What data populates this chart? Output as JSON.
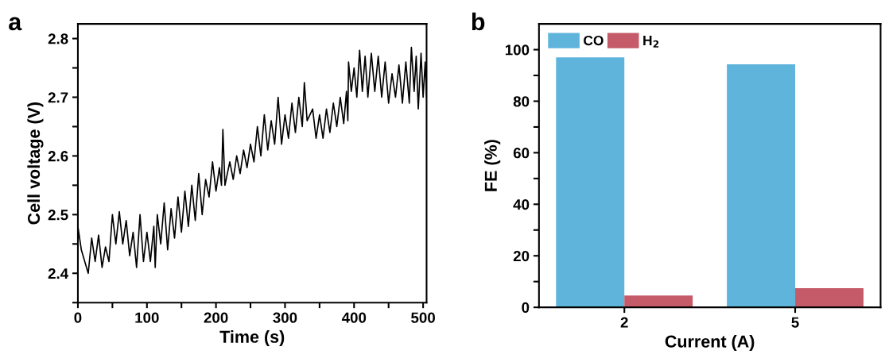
{
  "chart_data": [
    {
      "type": "line",
      "title": "a",
      "xlabel": "Time (s)",
      "ylabel": "Cell voltage (V)",
      "xlim": [
        0,
        505
      ],
      "ylim": [
        2.35,
        2.825
      ],
      "xticks": [
        0,
        {
          "value": 50,
          "label": null
        },
        100,
        {
          "value": 150,
          "label": null
        },
        200,
        {
          "value": 250,
          "label": null
        },
        300,
        {
          "value": 350,
          "label": null
        },
        400,
        {
          "value": 450,
          "label": null
        },
        500
      ],
      "yticks": [
        {
          "value": 2.35,
          "label": null
        },
        2.4,
        {
          "value": 2.45,
          "label": null
        },
        2.5,
        {
          "value": 2.55,
          "label": null
        },
        2.6,
        {
          "value": 2.65,
          "label": null
        },
        2.7,
        {
          "value": 2.75,
          "label": null
        },
        2.8
      ],
      "grid": false,
      "legend": false,
      "series": [
        {
          "color": "#000000",
          "x": [
            0,
            5,
            10,
            15,
            20,
            25,
            30,
            35,
            40,
            45,
            50,
            55,
            60,
            65,
            70,
            75,
            80,
            85,
            90,
            95,
            100,
            105,
            110,
            112,
            115,
            120,
            125,
            130,
            135,
            140,
            145,
            150,
            155,
            160,
            165,
            170,
            175,
            180,
            185,
            190,
            195,
            200,
            205,
            208,
            210,
            213,
            220,
            225,
            230,
            235,
            240,
            245,
            250,
            255,
            260,
            265,
            270,
            275,
            280,
            285,
            290,
            295,
            300,
            305,
            310,
            315,
            320,
            325,
            328,
            332,
            340,
            345,
            350,
            355,
            360,
            365,
            370,
            375,
            380,
            385,
            389,
            391,
            392,
            396,
            400,
            404,
            408,
            412,
            416,
            420,
            425,
            430,
            435,
            440,
            445,
            450,
            455,
            460,
            465,
            470,
            475,
            480,
            483,
            487,
            490,
            493,
            497,
            500,
            503,
            505
          ],
          "values": [
            2.48,
            2.44,
            2.42,
            2.4,
            2.46,
            2.42,
            2.465,
            2.41,
            2.445,
            2.42,
            2.5,
            2.45,
            2.505,
            2.45,
            2.49,
            2.43,
            2.47,
            2.41,
            2.5,
            2.42,
            2.47,
            2.42,
            2.48,
            2.41,
            2.5,
            2.45,
            2.52,
            2.44,
            2.51,
            2.46,
            2.53,
            2.47,
            2.54,
            2.48,
            2.55,
            2.49,
            2.57,
            2.5,
            2.56,
            2.53,
            2.59,
            2.54,
            2.58,
            2.55,
            2.645,
            2.55,
            2.59,
            2.56,
            2.6,
            2.57,
            2.61,
            2.58,
            2.62,
            2.59,
            2.65,
            2.6,
            2.67,
            2.61,
            2.66,
            2.62,
            2.7,
            2.62,
            2.67,
            2.63,
            2.69,
            2.64,
            2.7,
            2.65,
            2.725,
            2.66,
            2.68,
            2.63,
            2.67,
            2.63,
            2.68,
            2.64,
            2.69,
            2.65,
            2.7,
            2.655,
            2.71,
            2.66,
            2.76,
            2.71,
            2.75,
            2.7,
            2.78,
            2.71,
            2.77,
            2.7,
            2.775,
            2.71,
            2.77,
            2.7,
            2.76,
            2.69,
            2.74,
            2.7,
            2.755,
            2.69,
            2.76,
            2.69,
            2.785,
            2.71,
            2.77,
            2.68,
            2.775,
            2.7,
            2.76,
            2.7
          ]
        }
      ]
    },
    {
      "type": "bar",
      "title": "b",
      "xlabel": "Current (A)",
      "ylabel": "FE (%)",
      "categories": [
        "2",
        "5"
      ],
      "ylim": [
        0,
        110
      ],
      "yticks": [
        0,
        {
          "value": 10,
          "label": null
        },
        20,
        {
          "value": 30,
          "label": null
        },
        40,
        {
          "value": 50,
          "label": null
        },
        60,
        {
          "value": 70,
          "label": null
        },
        80,
        {
          "value": 90,
          "label": null
        },
        100
      ],
      "grid": false,
      "legend": "top left",
      "series": [
        {
          "name": "CO",
          "color": "#5fb4dc",
          "values": [
            97,
            94.3
          ]
        },
        {
          "name": "H$_{2}$",
          "color": "#c55a68",
          "values": [
            4.6,
            7.4
          ]
        }
      ]
    }
  ]
}
